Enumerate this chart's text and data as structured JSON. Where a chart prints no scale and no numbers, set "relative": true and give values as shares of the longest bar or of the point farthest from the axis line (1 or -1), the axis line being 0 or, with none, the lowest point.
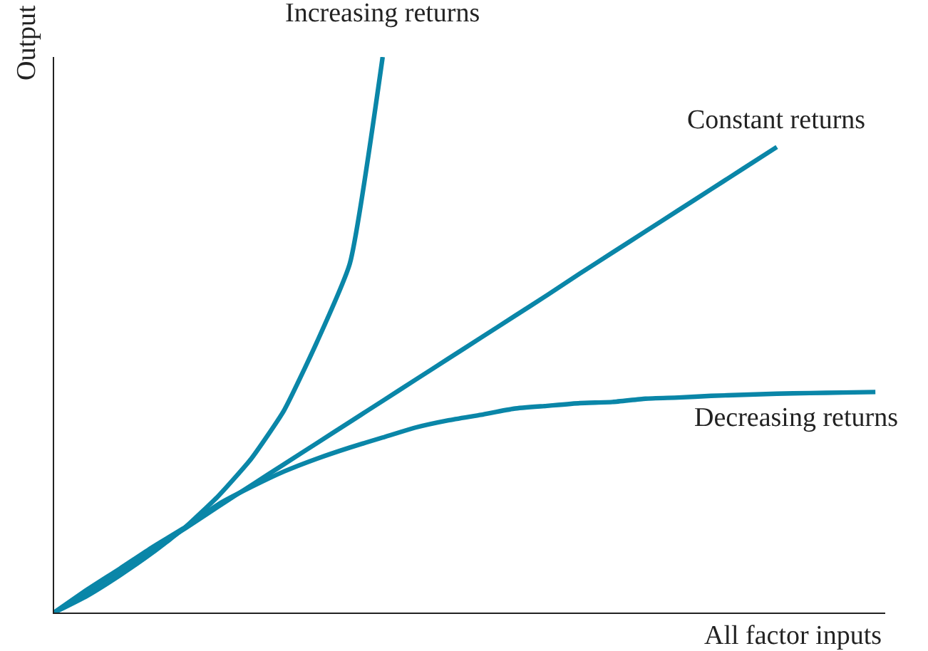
{
  "chart_data": {
    "type": "line",
    "relative": true,
    "xlabel": "All factor inputs",
    "ylabel": "Output",
    "categories": [
      null,
      null,
      null,
      null,
      null,
      null,
      null,
      null,
      null,
      null,
      null,
      null,
      null,
      null,
      null,
      null,
      null,
      null,
      null,
      null,
      null,
      null,
      null,
      null,
      null,
      null
    ],
    "series": [
      {
        "name": "Increasing returns",
        "color": "#0a86a8",
        "values": [
          0,
          0.03,
          0.067,
          0.108,
          0.154,
          0.21,
          0.277,
          0.364,
          0.487,
          0.628,
          1.0,
          null,
          null,
          null,
          null,
          null,
          null,
          null,
          null,
          null,
          null,
          null,
          null,
          null,
          null,
          null
        ]
      },
      {
        "name": "Constant returns",
        "color": "#0a86a8",
        "values": [
          0,
          0.038,
          0.076,
          0.114,
          0.152,
          0.191,
          0.229,
          0.267,
          0.305,
          0.343,
          0.381,
          0.419,
          0.457,
          0.495,
          0.533,
          0.571,
          0.61,
          0.648,
          0.686,
          0.724,
          0.762,
          0.8,
          0.838,
          null,
          null,
          null
        ]
      },
      {
        "name": "Decreasing returns",
        "color": "#0a86a8",
        "values": [
          0,
          0.041,
          0.079,
          0.118,
          0.154,
          0.195,
          0.226,
          0.254,
          0.277,
          0.297,
          0.315,
          0.333,
          0.346,
          0.356,
          0.367,
          0.372,
          0.377,
          0.379,
          0.385,
          0.387,
          0.39,
          0.392,
          0.394,
          0.395,
          0.396,
          0.397
        ]
      }
    ],
    "legend": false
  }
}
